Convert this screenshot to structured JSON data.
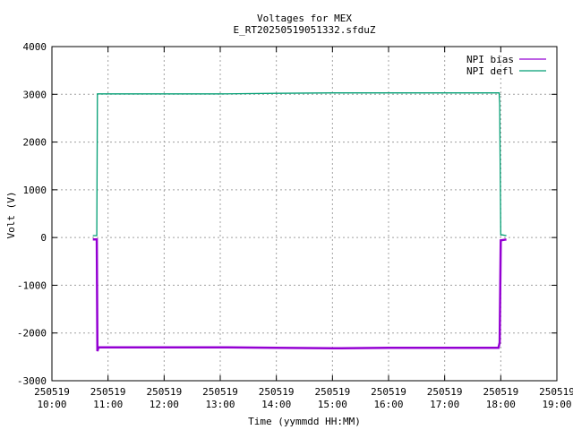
{
  "chart_data": {
    "type": "line",
    "title": "Voltages for MEX",
    "subtitle": "E_RT20250519051332.sfduZ",
    "xlabel": "Time (yymmdd HH:MM)",
    "ylabel": "Volt (V)",
    "xlim": [
      10.0,
      19.0
    ],
    "ylim": [
      -3000,
      4000
    ],
    "xticks": [
      {
        "value": 10,
        "date": "250519",
        "time": "10:00"
      },
      {
        "value": 11,
        "date": "250519",
        "time": "11:00"
      },
      {
        "value": 12,
        "date": "250519",
        "time": "12:00"
      },
      {
        "value": 13,
        "date": "250519",
        "time": "13:00"
      },
      {
        "value": 14,
        "date": "250519",
        "time": "14:00"
      },
      {
        "value": 15,
        "date": "250519",
        "time": "15:00"
      },
      {
        "value": 16,
        "date": "250519",
        "time": "16:00"
      },
      {
        "value": 17,
        "date": "250519",
        "time": "17:00"
      },
      {
        "value": 18,
        "date": "250519",
        "time": "18:00"
      },
      {
        "value": 19,
        "date": "250519",
        "time": "19:00"
      }
    ],
    "yticks": [
      -3000,
      -2000,
      -1000,
      0,
      1000,
      2000,
      3000,
      4000
    ],
    "grid": true,
    "legend_position": "top-right",
    "series": [
      {
        "name": "NPI bias",
        "color": "#9400d3",
        "points": [
          [
            10.73,
            -40
          ],
          [
            10.8,
            -40
          ],
          [
            10.81,
            -2380
          ],
          [
            10.83,
            -2300
          ],
          [
            12.0,
            -2300
          ],
          [
            13.0,
            -2300
          ],
          [
            14.0,
            -2310
          ],
          [
            15.0,
            -2320
          ],
          [
            16.0,
            -2310
          ],
          [
            17.0,
            -2310
          ],
          [
            17.96,
            -2310
          ],
          [
            17.98,
            -2200
          ],
          [
            18.0,
            -60
          ],
          [
            18.1,
            -40
          ]
        ]
      },
      {
        "name": "NPI defl",
        "color": "#009e73",
        "points": [
          [
            10.73,
            40
          ],
          [
            10.8,
            40
          ],
          [
            10.81,
            3010
          ],
          [
            10.83,
            3010
          ],
          [
            12.0,
            3010
          ],
          [
            12.85,
            3010
          ],
          [
            13.0,
            3010
          ],
          [
            14.0,
            3020
          ],
          [
            15.0,
            3030
          ],
          [
            16.0,
            3030
          ],
          [
            17.0,
            3030
          ],
          [
            17.97,
            3030
          ],
          [
            17.98,
            2800
          ],
          [
            18.0,
            60
          ],
          [
            18.1,
            40
          ]
        ]
      }
    ]
  }
}
